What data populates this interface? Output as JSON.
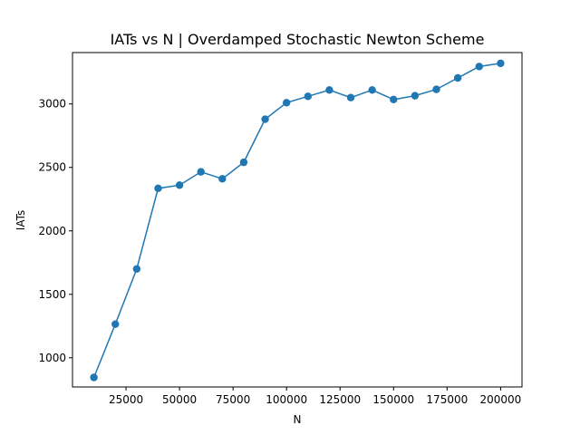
{
  "chart_data": {
    "type": "line",
    "title": "IATs vs N | Overdamped Stochastic Newton Scheme",
    "xlabel": "N",
    "ylabel": "IATs",
    "xlim": [
      0,
      210000
    ],
    "ylim": [
      770,
      3405
    ],
    "grid": false,
    "color": "#1f77b4",
    "marker": "circle",
    "x_ticks": [
      25000,
      50000,
      75000,
      100000,
      125000,
      150000,
      175000,
      200000
    ],
    "y_ticks": [
      1000,
      1500,
      2000,
      2500,
      3000
    ],
    "series": [
      {
        "x": [
          10000,
          20000,
          30000,
          40000,
          50000,
          60000,
          70000,
          80000,
          90000,
          100000,
          110000,
          120000,
          130000,
          140000,
          150000,
          160000,
          170000,
          180000,
          190000,
          200000
        ],
        "y": [
          845,
          1265,
          1700,
          2335,
          2360,
          2465,
          2410,
          2540,
          2880,
          3010,
          3060,
          3110,
          3050,
          3110,
          3035,
          3065,
          3115,
          3205,
          3295,
          3320
        ]
      }
    ]
  }
}
